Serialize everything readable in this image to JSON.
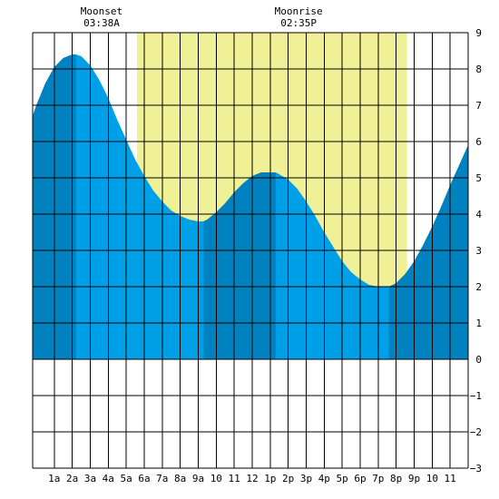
{
  "chart_data": {
    "type": "area",
    "title": "",
    "xlabel": "",
    "ylabel": "",
    "x_unit": "hour",
    "xlim": [
      -0.2,
      24
    ],
    "ylim": [
      -3,
      9
    ],
    "x_tick_labels": [
      {
        "hour": 1,
        "label": "1a"
      },
      {
        "hour": 2,
        "label": "2a"
      },
      {
        "hour": 3,
        "label": "3a"
      },
      {
        "hour": 4,
        "label": "4a"
      },
      {
        "hour": 5,
        "label": "5a"
      },
      {
        "hour": 6,
        "label": "6a"
      },
      {
        "hour": 7,
        "label": "7a"
      },
      {
        "hour": 8,
        "label": "8a"
      },
      {
        "hour": 9,
        "label": "9a"
      },
      {
        "hour": 10,
        "label": "10"
      },
      {
        "hour": 11,
        "label": "11"
      },
      {
        "hour": 12,
        "label": "12"
      },
      {
        "hour": 13,
        "label": "1p"
      },
      {
        "hour": 14,
        "label": "2p"
      },
      {
        "hour": 15,
        "label": "3p"
      },
      {
        "hour": 16,
        "label": "4p"
      },
      {
        "hour": 17,
        "label": "5p"
      },
      {
        "hour": 18,
        "label": "6p"
      },
      {
        "hour": 19,
        "label": "7p"
      },
      {
        "hour": 20,
        "label": "8p"
      },
      {
        "hour": 21,
        "label": "9p"
      },
      {
        "hour": 22,
        "label": "10"
      },
      {
        "hour": 23,
        "label": "11"
      }
    ],
    "y_ticks": [
      9,
      8,
      7,
      6,
      5,
      4,
      3,
      2,
      1,
      0,
      -1,
      -2,
      -3
    ],
    "grid": true,
    "daylight": {
      "start": 5.6,
      "end": 20.6,
      "color": "#f0f096"
    },
    "moon_events": [
      {
        "label": "Moonset",
        "time": "03:38A",
        "hour": 3.63
      },
      {
        "label": "Moonrise",
        "time": "02:35P",
        "hour": 14.58
      }
    ],
    "tide_extremes": [
      {
        "hour": 2.2,
        "height": 8.4,
        "kind": "high"
      },
      {
        "hour": 9.3,
        "height": 3.8,
        "kind": "low"
      },
      {
        "hour": 13.3,
        "height": 5.15,
        "kind": "high"
      },
      {
        "hour": 19.6,
        "height": 2.0,
        "kind": "low"
      }
    ],
    "series": [
      {
        "name": "",
        "x": [
          -0.2,
          0,
          0.5,
          1,
          1.5,
          2,
          2.2,
          2.5,
          3,
          3.5,
          4,
          4.5,
          5,
          5.5,
          6,
          6.5,
          7,
          7.5,
          8,
          8.5,
          9,
          9.3,
          9.5,
          10,
          10.5,
          11,
          11.5,
          12,
          12.5,
          13,
          13.3,
          13.5,
          14,
          14.5,
          15,
          15.5,
          16,
          16.5,
          17,
          17.5,
          18,
          18.5,
          19,
          19.6,
          20,
          20.5,
          21,
          21.5,
          22,
          22.5,
          23,
          23.5,
          24
        ],
        "y": [
          6.7,
          7.0,
          7.6,
          8.05,
          8.3,
          8.4,
          8.4,
          8.35,
          8.1,
          7.7,
          7.2,
          6.6,
          6.05,
          5.5,
          5.05,
          4.65,
          4.35,
          4.1,
          3.95,
          3.85,
          3.8,
          3.8,
          3.85,
          4.05,
          4.3,
          4.6,
          4.85,
          5.05,
          5.15,
          5.15,
          5.15,
          5.1,
          4.95,
          4.7,
          4.35,
          3.95,
          3.5,
          3.1,
          2.7,
          2.4,
          2.2,
          2.05,
          2.0,
          2.0,
          2.1,
          2.35,
          2.7,
          3.15,
          3.65,
          4.2,
          4.8,
          5.35,
          5.9
        ],
        "color": "#00a0e8",
        "band_color": "#0082c0",
        "bands": [
          [
            -0.2,
            2.2
          ],
          [
            9.3,
            13.3
          ],
          [
            19.6,
            24
          ]
        ]
      }
    ]
  }
}
